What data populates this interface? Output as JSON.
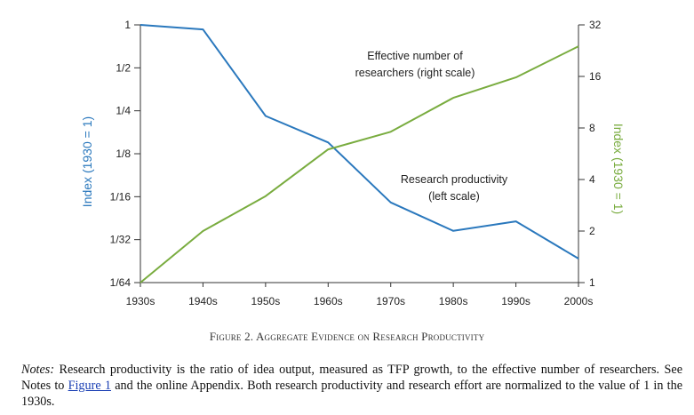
{
  "chart_data": {
    "type": "line",
    "categories": [
      "1930s",
      "1940s",
      "1950s",
      "1960s",
      "1970s",
      "1980s",
      "1990s",
      "2000s"
    ],
    "left_axis": {
      "label": "Index (1930 = 1)",
      "scale": "log2",
      "ticks": [
        "1",
        "1/2",
        "1/4",
        "1/8",
        "1/16",
        "1/32",
        "1/64"
      ],
      "tick_values": [
        1,
        0.5,
        0.25,
        0.125,
        0.0625,
        0.03125,
        0.015625
      ],
      "ylim": [
        0.015625,
        1
      ]
    },
    "right_axis": {
      "label": "Index (1930 = 1)",
      "scale": "log2",
      "ticks": [
        "32",
        "16",
        "8",
        "4",
        "2",
        "1"
      ],
      "tick_values": [
        32,
        16,
        8,
        4,
        2,
        1
      ],
      "ylim": [
        1,
        32
      ]
    },
    "series": [
      {
        "name": "Research productivity (left scale)",
        "axis": "left",
        "color": "#2a78bd",
        "values": [
          1,
          0.93,
          0.23,
          0.15,
          0.057,
          0.036,
          0.042,
          0.023
        ]
      },
      {
        "name": "Effective number of researchers (right scale)",
        "axis": "right",
        "color": "#79ac3f",
        "values": [
          1,
          2.0,
          3.2,
          6.0,
          7.6,
          12.0,
          15.8,
          24.0
        ]
      }
    ],
    "annotations": [
      {
        "lines": [
          "Effective number of",
          "researchers (right scale)"
        ]
      },
      {
        "lines": [
          "Research productivity",
          "(left scale)"
        ]
      }
    ],
    "grid": false
  },
  "caption": "Figure 2. Aggregate Evidence on Research Productivity",
  "notes": {
    "label": "Notes:",
    "text_before_link": " Research productivity is the ratio of idea output, measured as TFP growth, to the effective number of researchers. See Notes to ",
    "link_text": "Figure 1",
    "text_after_link": " and the online Appendix. Both research productivity and research effort are normalized to the value of 1 in the 1930s."
  }
}
